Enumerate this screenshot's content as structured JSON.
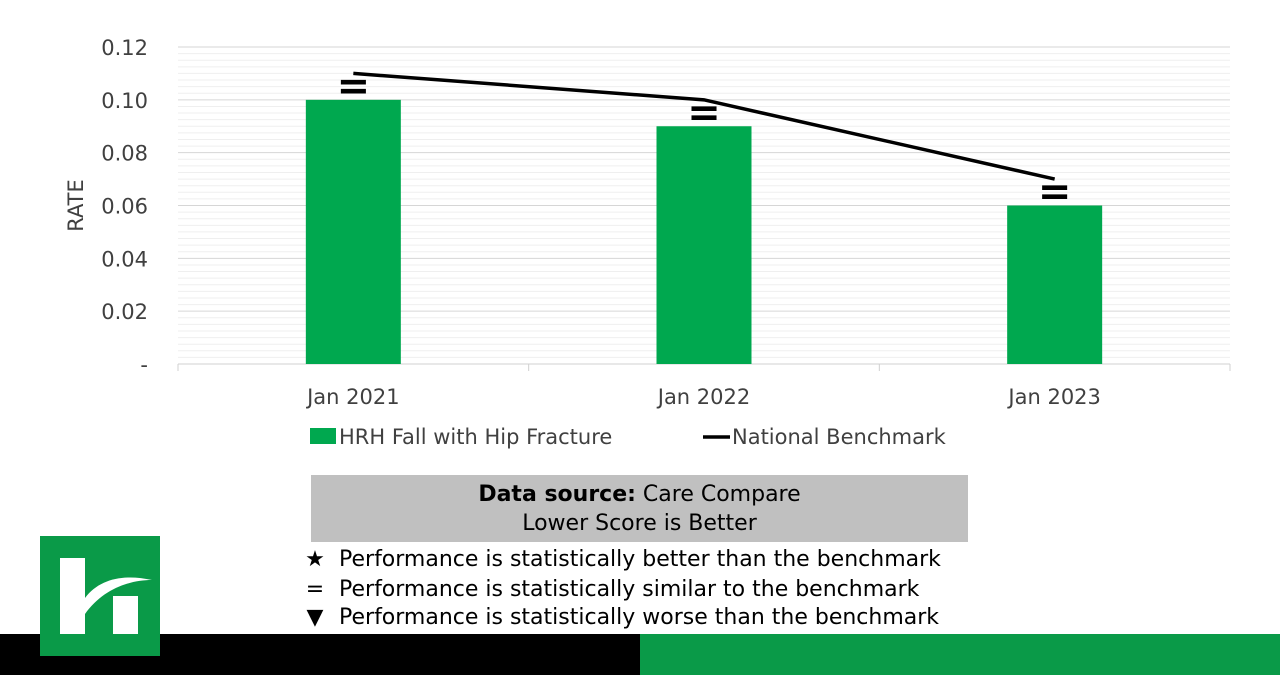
{
  "chart_data": {
    "type": "bar",
    "categories": [
      "Jan 2021",
      "Jan 2022",
      "Jan 2023"
    ],
    "series": [
      {
        "name": "HRH Fall with Hip Fracture",
        "type": "bar",
        "values": [
          0.1,
          0.09,
          0.06
        ],
        "color": "#00a84f"
      },
      {
        "name": "National Benchmark",
        "type": "line",
        "values": [
          0.11,
          0.1,
          0.07
        ],
        "color": "#000000"
      }
    ],
    "markers": [
      "=",
      "=",
      "="
    ],
    "ylabel": "RATE",
    "xlabel": "",
    "ylim": [
      0,
      0.12
    ],
    "yticks": [
      "-",
      "0.02",
      "0.04",
      "0.06",
      "0.08",
      "0.10",
      "0.12"
    ],
    "grid": true,
    "legend_position": "bottom"
  },
  "info": {
    "source_label": "Data source:",
    "source_value": " Care Compare",
    "note": "Lower Score is Better"
  },
  "key": [
    {
      "symbol": "★",
      "text": "Performance is statistically better than the benchmark"
    },
    {
      "symbol": "=",
      "text": "Performance is statistically similar to the benchmark"
    },
    {
      "symbol": "▼",
      "text": "Performance is statistically worse than the benchmark"
    }
  ],
  "colors": {
    "brand_green": "#0a9a48",
    "bar_green": "#00a84f",
    "box_gray": "#c0c0c0"
  }
}
